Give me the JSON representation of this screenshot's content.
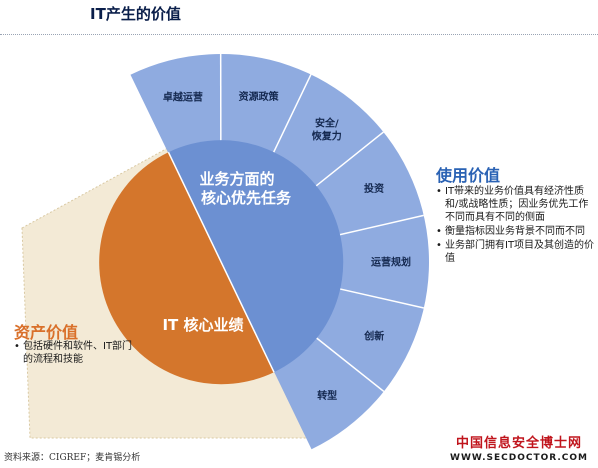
{
  "title": "IT产生的价值",
  "center": {
    "top_line1": "业务方面的",
    "top_line2": "核心优先任务",
    "bottom": "IT 核心业绩"
  },
  "segments": [
    {
      "label": [
        "卓越运营"
      ]
    },
    {
      "label": [
        "资源政策"
      ]
    },
    {
      "label": [
        "安全/",
        "恢复力"
      ]
    },
    {
      "label": [
        "投资"
      ]
    },
    {
      "label": [
        "运营规划"
      ]
    },
    {
      "label": [
        "创新"
      ]
    },
    {
      "label": [
        "转型"
      ]
    }
  ],
  "usage_value": {
    "title": "使用价值",
    "bullets": [
      "IT带来的业务价值具有经济性质和/或战略性质；因业务优先工作不同而具有不同的侧面",
      "衡量指标因业务背景不同而不同",
      "业务部门拥有IT项目及其创造的价值"
    ]
  },
  "asset_value": {
    "title": "资产价值",
    "bullets": [
      "包括硬件和软件、IT部门的流程和技能"
    ]
  },
  "source": "资料来源：CIGREF；麦肯锡分析",
  "watermark": {
    "main": "中国信息安全博士网",
    "url": "WWW.SECDOCTOR.COM"
  },
  "colors": {
    "fan_light": "#8fabe0",
    "center_blue": "#6c90d2",
    "orange": "#d4762c",
    "beige": "#f3ead6",
    "usage_title": "#2a62b4",
    "asset_title": "#d9702a",
    "watermark_red": "#c0141c"
  }
}
